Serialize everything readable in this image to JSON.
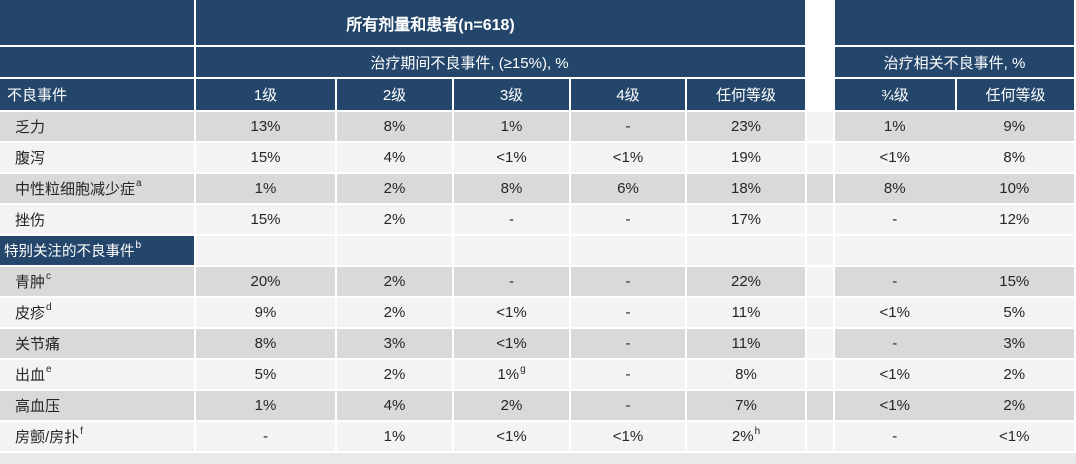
{
  "colors": {
    "header_navy": "#24466b",
    "row_band_gray": "#d9d9d9",
    "row_band_light": "#f3f3f3",
    "header_text": "#ffffff",
    "body_text": "#262626"
  },
  "chart_data": {
    "type": "table",
    "title": "所有剂量和患者(n=618)",
    "group_headers": {
      "treatment_emergent": "治疗期间不良事件, (≥15%), %",
      "treatment_related": "治疗相关不良事件, %"
    },
    "row_header": "不良事件",
    "te_columns": [
      "1级",
      "2级",
      "3级",
      "4级",
      "任何等级"
    ],
    "tr_columns": [
      "¾级",
      "任何等级"
    ],
    "rows": [
      {
        "label": "乏力",
        "te": [
          "13%",
          "8%",
          "1%",
          "-",
          "23%"
        ],
        "tr": [
          "1%",
          "9%"
        ]
      },
      {
        "label": "腹泻",
        "te": [
          "15%",
          "4%",
          "<1%",
          "<1%",
          "19%"
        ],
        "tr": [
          "<1%",
          "8%"
        ]
      },
      {
        "label": "中性粒细胞减少症",
        "label_note": "a",
        "te": [
          "1%",
          "2%",
          "8%",
          "6%",
          "18%"
        ],
        "tr": [
          "8%",
          "10%"
        ]
      },
      {
        "label": "挫伤",
        "te": [
          "15%",
          "2%",
          "-",
          "-",
          "17%"
        ],
        "tr": [
          "-",
          "12%"
        ]
      },
      {
        "label": "特别关注的不良事件",
        "label_note": "b",
        "is_section_header": true,
        "te": [
          "",
          "",
          "",
          "",
          ""
        ],
        "tr": [
          "",
          ""
        ]
      },
      {
        "label": "青肿",
        "label_note": "c",
        "te": [
          "20%",
          "2%",
          "-",
          "-",
          "22%"
        ],
        "tr": [
          "-",
          "15%"
        ]
      },
      {
        "label": "皮疹",
        "label_note": "d",
        "te": [
          "9%",
          "2%",
          "<1%",
          "-",
          "11%"
        ],
        "tr": [
          "<1%",
          "5%"
        ]
      },
      {
        "label": "关节痛",
        "te": [
          "8%",
          "3%",
          "<1%",
          "-",
          "11%"
        ],
        "tr": [
          "-",
          "3%"
        ]
      },
      {
        "label": "出血",
        "label_note": "e",
        "te": [
          "5%",
          "2%",
          "1%",
          "-",
          "8%"
        ],
        "te_note": {
          "column": "3级",
          "mark": "g"
        },
        "tr": [
          "<1%",
          "2%"
        ]
      },
      {
        "label": "高血压",
        "te": [
          "1%",
          "4%",
          "2%",
          "-",
          "7%"
        ],
        "tr": [
          "<1%",
          "2%"
        ]
      },
      {
        "label": "房颤/房扑",
        "label_note": "f",
        "te": [
          "-",
          "1%",
          "<1%",
          "<1%",
          "2%"
        ],
        "te_note": {
          "column": "任何等级",
          "mark": "h"
        },
        "tr": [
          "-",
          "<1%"
        ]
      }
    ]
  }
}
